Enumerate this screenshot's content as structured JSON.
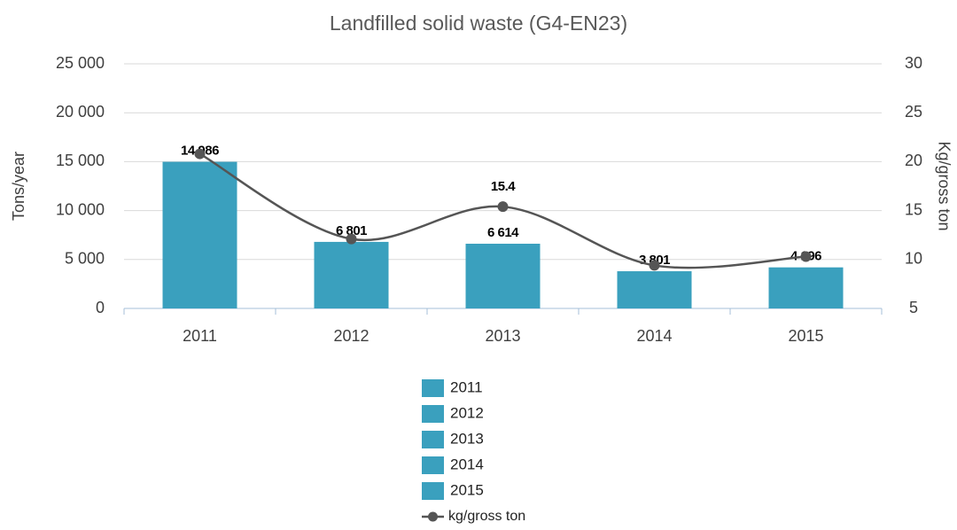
{
  "chart_data": {
    "type": "bar",
    "title": "Landfilled solid waste (G4-EN23)",
    "categories": [
      "2011",
      "2012",
      "2013",
      "2014",
      "2015"
    ],
    "y_label": "Tons/year",
    "y2_label": "Kg/gross ton",
    "series": [
      {
        "type": "bar",
        "color": "#3aa0be",
        "values": [
          14986,
          6801,
          6614,
          3801,
          4196
        ],
        "value_labels": [
          "14 986",
          "6 801",
          "6 614",
          "3 801",
          "4 196"
        ]
      },
      {
        "type": "line",
        "name": "kg/gross ton",
        "color": "#555555",
        "axis": "y2",
        "values": [
          20.8,
          12.1,
          15.4,
          9.4,
          10.3
        ],
        "value_labels": [
          null,
          null,
          "15.4",
          null,
          null
        ]
      }
    ],
    "ylim": [
      0,
      25000
    ],
    "yticks": [
      0,
      {
        "value": 5000,
        "label": "5 000"
      },
      {
        "value": 10000,
        "label": "10 000"
      },
      {
        "value": 15000,
        "label": "15 000"
      },
      {
        "value": 20000,
        "label": "20 000"
      },
      {
        "value": 25000,
        "label": "25 000"
      }
    ],
    "y2lim": [
      5,
      30
    ],
    "y2ticks": [
      5,
      10,
      15,
      20,
      25,
      30
    ],
    "grid": true
  }
}
